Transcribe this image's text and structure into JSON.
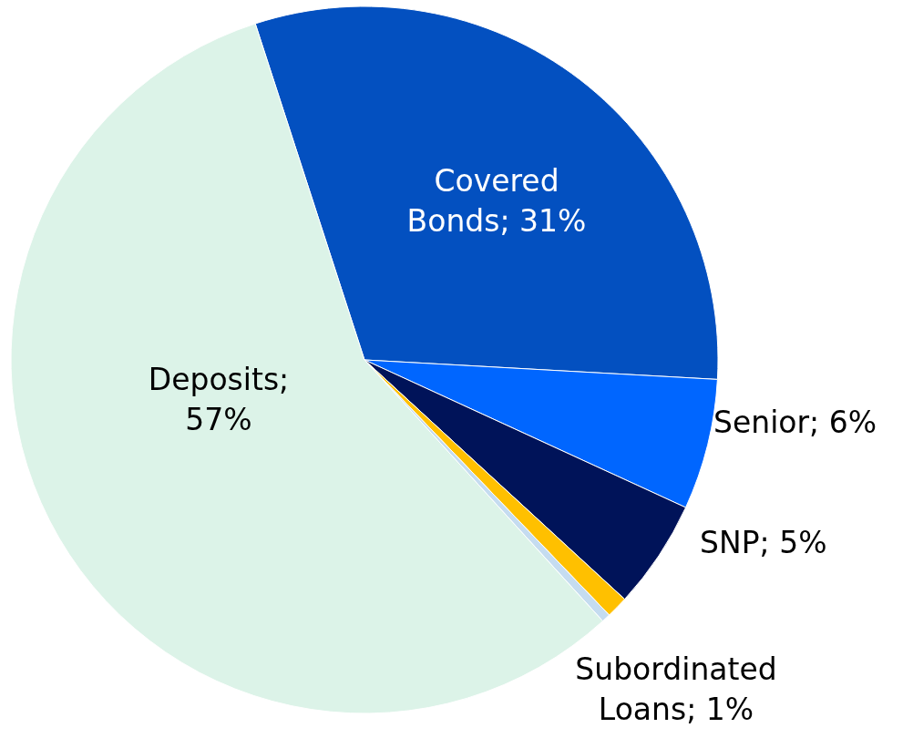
{
  "chart_data": {
    "type": "pie",
    "categories": [
      "Covered Bonds; 31%",
      "Senior; 6%",
      "SNP; 5%",
      "Subordinated Loans; 1%",
      null,
      "Deposits; 57%"
    ],
    "values": [
      31,
      6,
      5,
      1,
      0.4,
      57
    ],
    "colors": [
      "#0350c0",
      "#0066ff",
      "#001359",
      "#ffc000",
      "#c5dcf0",
      "#dcf3e8"
    ]
  }
}
